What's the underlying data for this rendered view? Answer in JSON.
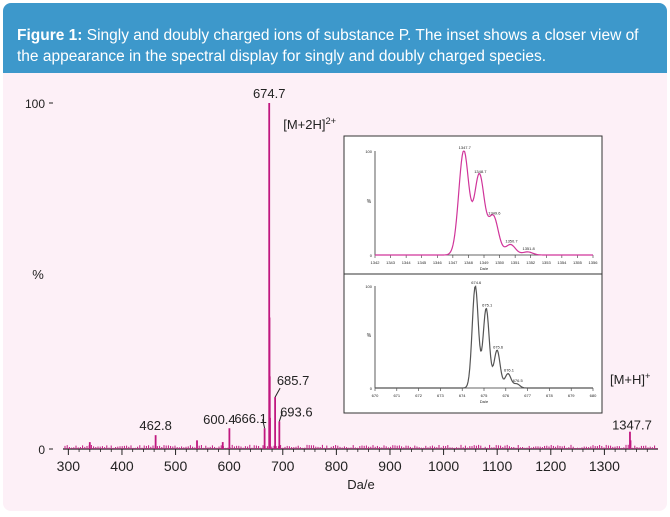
{
  "caption": {
    "figure_label": "Figure 1:",
    "line1_text": "Singly and doubly charged ions of substance P. The inset shows a closer view of",
    "line2_text": "the appearance in the spectral display for singly and doubly charged species."
  },
  "colors": {
    "header_bg": "#3d98cb",
    "panel_bg": "#fdf0f7",
    "spectrum": "#c0177f",
    "inset_top": "#d0359a",
    "inset_bottom": "#555555"
  },
  "chart_data": [
    {
      "type": "line",
      "xlabel": "Da/e",
      "ylabel": "%",
      "xlim": [
        290,
        1400
      ],
      "ylim": [
        0,
        100
      ],
      "x_ticks": [
        300,
        400,
        500,
        600,
        700,
        800,
        900,
        1000,
        1100,
        1200,
        1300
      ],
      "y_ticks": [
        0,
        100
      ],
      "grid": false,
      "series": [
        {
          "peaks": [
            {
              "x": 340,
              "y": 2
            },
            {
              "x": 462.8,
              "y": 4
            },
            {
              "x": 540,
              "y": 2.5
            },
            {
              "x": 588,
              "y": 2
            },
            {
              "x": 600.4,
              "y": 6
            },
            {
              "x": 666.1,
              "y": 6
            },
            {
              "x": 674.7,
              "y": 100
            },
            {
              "x": 675.2,
              "y": 38
            },
            {
              "x": 675.7,
              "y": 21
            },
            {
              "x": 676.2,
              "y": 9
            },
            {
              "x": 685.7,
              "y": 15
            },
            {
              "x": 693.6,
              "y": 8
            },
            {
              "x": 1347.7,
              "y": 5
            },
            {
              "x": 1348.7,
              "y": 2.5
            }
          ]
        }
      ],
      "annotations": [
        {
          "text": "674.7",
          "x": 674.7,
          "y": 100
        },
        {
          "text": "[M+2H]",
          "superscript": "2+",
          "x": 674.7,
          "y": 93
        },
        {
          "text": "685.7",
          "x": 685.7,
          "y": 15
        },
        {
          "text": "693.6",
          "x": 693.6,
          "y": 8
        },
        {
          "text": "666.1",
          "x": 666.1,
          "y": 6
        },
        {
          "text": "600.4",
          "x": 600.4,
          "y": 6
        },
        {
          "text": "462.8",
          "x": 462.8,
          "y": 4
        },
        {
          "text": "[M+H]",
          "superscript": "+",
          "x": 1347.7,
          "y": 13
        },
        {
          "text": "1347.7",
          "x": 1347.7,
          "y": 5
        }
      ]
    },
    {
      "type": "line",
      "xlabel": "Da/e",
      "ylabel": "%",
      "xlim": [
        1342,
        1356
      ],
      "ylim": [
        0,
        100
      ],
      "x_ticks": [
        1342,
        1343,
        1344,
        1345,
        1346,
        1347,
        1348,
        1349,
        1350,
        1351,
        1352,
        1353,
        1354,
        1355,
        1356
      ],
      "y_ticks": [
        0,
        100
      ],
      "series": [
        {
          "peaks": [
            {
              "x": 1347.7,
              "y": 100
            },
            {
              "x": 1348.7,
              "y": 77
            },
            {
              "x": 1349.6,
              "y": 37
            },
            {
              "x": 1350.7,
              "y": 10
            },
            {
              "x": 1351.8,
              "y": 3
            }
          ]
        }
      ],
      "annotations": [
        {
          "text": "1347.7",
          "x": 1347.7,
          "y": 100
        },
        {
          "text": "1348.7",
          "x": 1348.7,
          "y": 77
        },
        {
          "text": "1349.6",
          "x": 1349.6,
          "y": 37
        },
        {
          "text": "1350.7",
          "x": 1350.7,
          "y": 10
        },
        {
          "text": "1351.8",
          "x": 1351.8,
          "y": 3
        }
      ]
    },
    {
      "type": "line",
      "xlabel": "Da/e",
      "ylabel": "%",
      "xlim": [
        670,
        680
      ],
      "ylim": [
        0,
        100
      ],
      "x_ticks": [
        670,
        671,
        672,
        673,
        674,
        675,
        676,
        677,
        678,
        679,
        680
      ],
      "y_ticks": [
        0,
        100
      ],
      "series": [
        {
          "peaks": [
            {
              "x": 674.6,
              "y": 100
            },
            {
              "x": 675.1,
              "y": 78
            },
            {
              "x": 675.6,
              "y": 37
            },
            {
              "x": 676.1,
              "y": 14
            },
            {
              "x": 676.5,
              "y": 4
            }
          ]
        }
      ],
      "annotations": [
        {
          "text": "674.6",
          "x": 674.6,
          "y": 100
        },
        {
          "text": "675.1",
          "x": 675.1,
          "y": 78
        },
        {
          "text": "675.6",
          "x": 675.6,
          "y": 37
        },
        {
          "text": "676.1",
          "x": 676.1,
          "y": 14
        },
        {
          "text": "676.5",
          "x": 676.5,
          "y": 4
        }
      ]
    }
  ]
}
